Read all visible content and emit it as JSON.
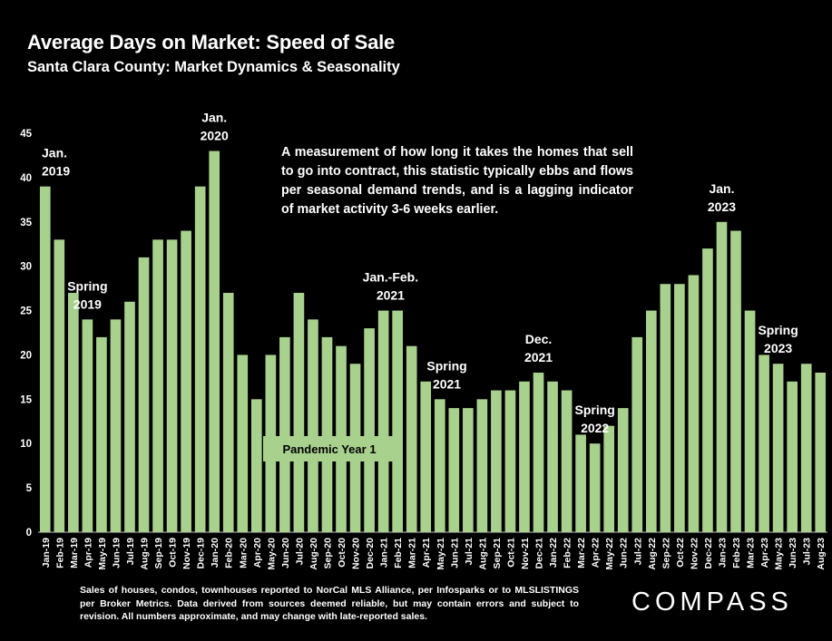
{
  "header": {
    "title": "Average Days on Market: Speed of Sale",
    "subtitle": "Santa Clara County: Market Dynamics & Seasonality"
  },
  "note": "A measurement of how long it takes the homes that sell to go into contract, this statistic typically ebbs and flows per seasonal demand trends, and is a lagging indicator of market activity 3-6 weeks earlier.",
  "footer": "Sales of houses, condos, townhouses reported to NorCal MLS Alliance, per Infosparks or to MLSLISTINGS per Broker Metrics. Data derived from sources deemed reliable, but may contain errors and subject to revision. All numbers approximate, and may change with late-reported sales.",
  "logo": "COMPASS",
  "colors": {
    "bar": "#a9d18e",
    "background": "#000000",
    "text": "#ffffff"
  },
  "chart_data": {
    "type": "bar",
    "title": "Average Days on Market: Speed of Sale",
    "ylim": [
      0,
      45
    ],
    "yticks": [
      0,
      5,
      10,
      15,
      20,
      25,
      30,
      35,
      40,
      45
    ],
    "grid": false,
    "categories": [
      "Jan-19",
      "Feb-19",
      "Mar-19",
      "Apr-19",
      "May-19",
      "Jun-19",
      "Jul-19",
      "Aug-19",
      "Sep-19",
      "Oct-19",
      "Nov-19",
      "Dec-19",
      "Jan-20",
      "Feb-20",
      "Mar-20",
      "Apr-20",
      "May-20",
      "Jun-20",
      "Jul-20",
      "Aug-20",
      "Sep-20",
      "Oct-20",
      "Nov-20",
      "Dec-20",
      "Jan-21",
      "Feb-21",
      "Mar-21",
      "Apr-21",
      "May-21",
      "Jun-21",
      "Jul-21",
      "Aug-21",
      "Sep-21",
      "Oct-21",
      "Nov-21",
      "Dec-21",
      "Jan-22",
      "Feb-22",
      "Mar-22",
      "Apr-22",
      "May-22",
      "Jun-22",
      "Jul-22",
      "Aug-22",
      "Sep-22",
      "Oct-22",
      "Nov-22",
      "Dec-22",
      "Jan-23",
      "Feb-23",
      "Mar-23",
      "Apr-23",
      "May-23",
      "Jun-23",
      "Jul-23",
      "Aug-23"
    ],
    "values": [
      39,
      33,
      27,
      24,
      22,
      24,
      26,
      31,
      33,
      33,
      34,
      39,
      43,
      27,
      20,
      15,
      20,
      22,
      27,
      24,
      22,
      21,
      19,
      23,
      25,
      25,
      21,
      17,
      15,
      14,
      14,
      15,
      16,
      16,
      17,
      18,
      17,
      16,
      11,
      10,
      12,
      14,
      22,
      25,
      28,
      28,
      29,
      32,
      35,
      34,
      25,
      20,
      19,
      17,
      19,
      18
    ],
    "annotations": [
      {
        "lines": [
          "Jan.",
          "2019"
        ],
        "index": 0,
        "align": "start"
      },
      {
        "lines": [
          "Spring",
          "2019"
        ],
        "index": 3
      },
      {
        "lines": [
          "Jan.",
          "2020"
        ],
        "index": 12
      },
      {
        "lines": [
          "Jan.-Feb.",
          "2021"
        ],
        "index": 24.5
      },
      {
        "lines": [
          "Spring",
          "2021"
        ],
        "index": 28.5
      },
      {
        "lines": [
          "Dec.",
          "2021"
        ],
        "index": 35
      },
      {
        "lines": [
          "Spring",
          "2022"
        ],
        "index": 39
      },
      {
        "lines": [
          "Jan.",
          "2023"
        ],
        "index": 48
      },
      {
        "lines": [
          "Spring",
          "2023"
        ],
        "index": 52
      }
    ],
    "callout": "Pandemic Year 1"
  }
}
